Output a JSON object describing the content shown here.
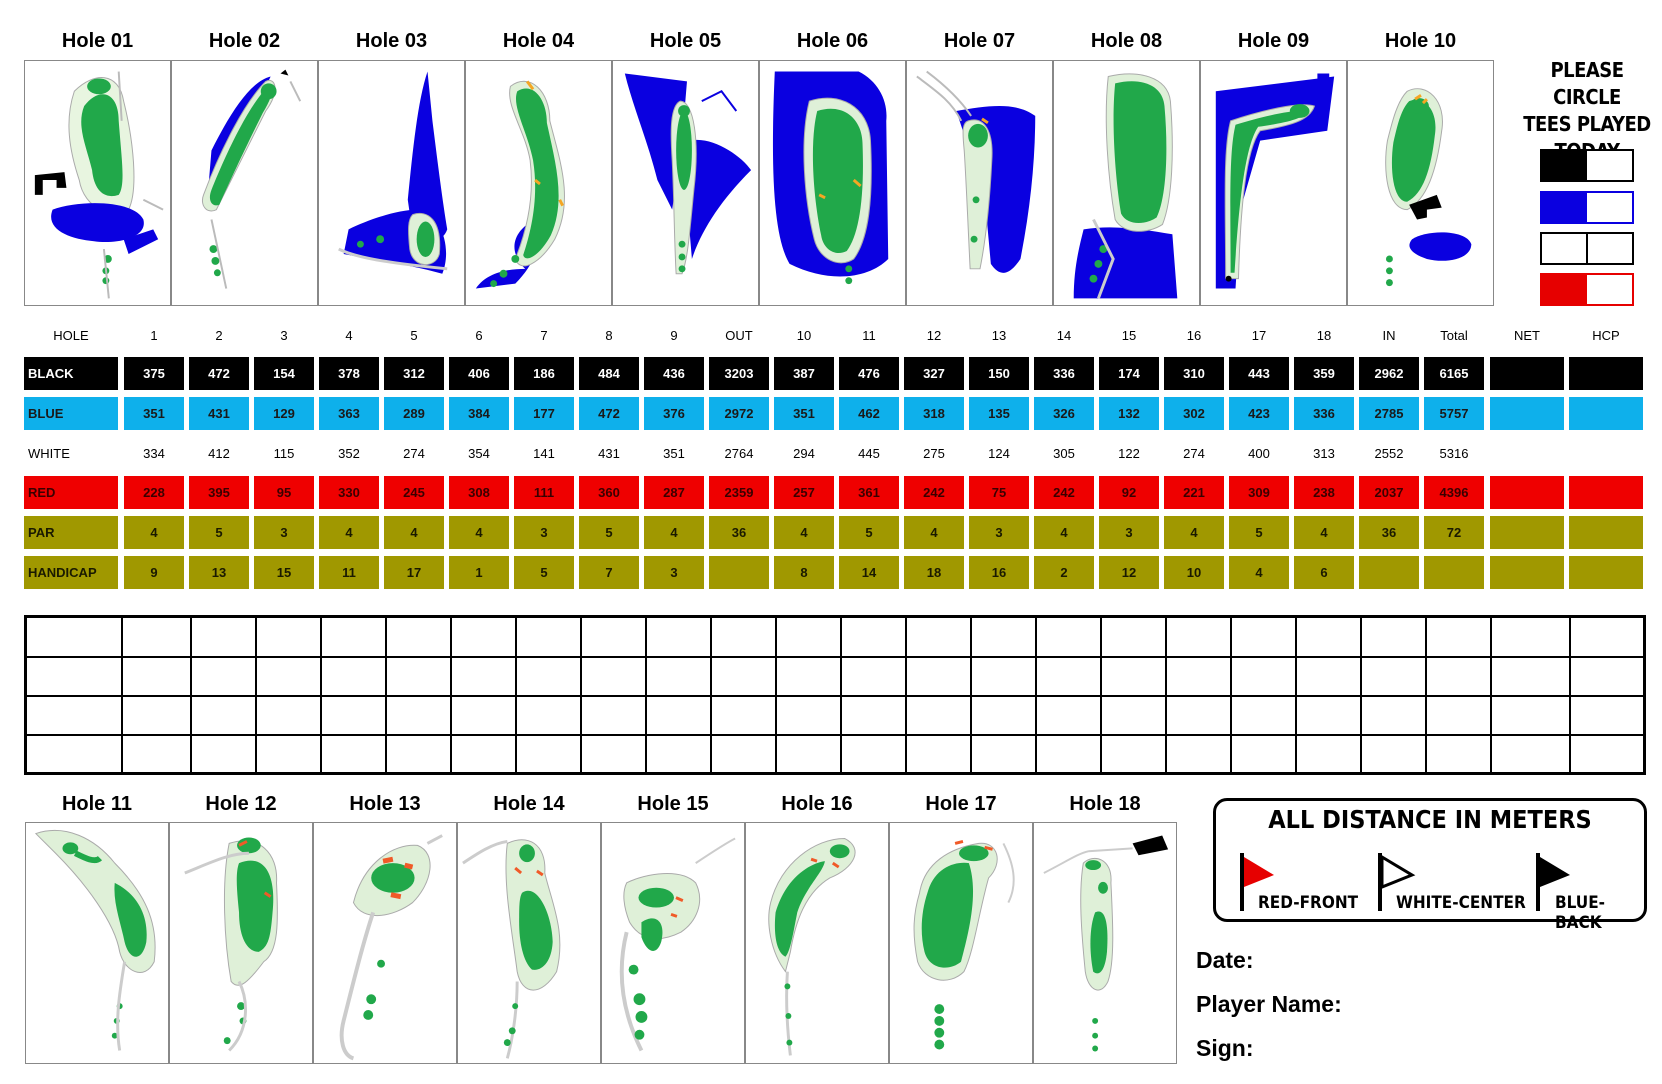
{
  "holes_top": [
    "Hole 01",
    "Hole 02",
    "Hole 03",
    "Hole 04",
    "Hole 05",
    "Hole 06",
    "Hole 07",
    "Hole 08",
    "Hole 09",
    "Hole 10"
  ],
  "holes_bottom": [
    "Hole 11",
    "Hole 12",
    "Hole 13",
    "Hole 14",
    "Hole 15",
    "Hole 16",
    "Hole 17",
    "Hole 18"
  ],
  "legend": {
    "line1": "PLEASE CIRCLE",
    "line2": "TEES PLAYED",
    "line3": "TODAY",
    "tee_colors": [
      "#000000",
      "#0a00e0",
      "#ffffff",
      "#e60000"
    ]
  },
  "scorecard": {
    "headers": [
      "HOLE",
      "1",
      "2",
      "3",
      "4",
      "5",
      "6",
      "7",
      "8",
      "9",
      "OUT",
      "10",
      "11",
      "12",
      "13",
      "14",
      "15",
      "16",
      "17",
      "18",
      "IN",
      "Total",
      "NET",
      "HCP"
    ],
    "rows": [
      {
        "label": "BLACK",
        "bg": "#000000",
        "fg": "#ffffff",
        "values": [
          "375",
          "472",
          "154",
          "378",
          "312",
          "406",
          "186",
          "484",
          "436",
          "3203",
          "387",
          "476",
          "327",
          "150",
          "336",
          "174",
          "310",
          "443",
          "359",
          "2962",
          "6165",
          "",
          ""
        ]
      },
      {
        "label": "BLUE",
        "bg": "#0eb0eb",
        "fg": "#1a1a1a",
        "values": [
          "351",
          "431",
          "129",
          "363",
          "289",
          "384",
          "177",
          "472",
          "376",
          "2972",
          "351",
          "462",
          "318",
          "135",
          "326",
          "132",
          "302",
          "423",
          "336",
          "2785",
          "5757",
          "",
          ""
        ]
      },
      {
        "label": "WHITE",
        "bg": "#ffffff",
        "fg": "#000000",
        "values": [
          "334",
          "412",
          "115",
          "352",
          "274",
          "354",
          "141",
          "431",
          "351",
          "2764",
          "294",
          "445",
          "275",
          "124",
          "305",
          "122",
          "274",
          "400",
          "313",
          "2552",
          "5316",
          "",
          ""
        ]
      },
      {
        "label": "RED",
        "bg": "#ef0000",
        "fg": "#3a0000",
        "values": [
          "228",
          "395",
          "95",
          "330",
          "245",
          "308",
          "111",
          "360",
          "287",
          "2359",
          "257",
          "361",
          "242",
          "75",
          "242",
          "92",
          "221",
          "309",
          "238",
          "2037",
          "4396",
          "",
          ""
        ]
      },
      {
        "label": "PAR",
        "bg": "#a09800",
        "fg": "#1a1a00",
        "values": [
          "4",
          "5",
          "3",
          "4",
          "4",
          "4",
          "3",
          "5",
          "4",
          "36",
          "4",
          "5",
          "4",
          "3",
          "4",
          "3",
          "4",
          "5",
          "4",
          "36",
          "72",
          "",
          ""
        ]
      },
      {
        "label": "HANDICAP",
        "bg": "#a09800",
        "fg": "#1a1a00",
        "values": [
          "9",
          "13",
          "15",
          "11",
          "17",
          "1",
          "5",
          "7",
          "3",
          "",
          "8",
          "14",
          "18",
          "16",
          "2",
          "12",
          "10",
          "4",
          "6",
          "",
          "",
          "",
          ""
        ]
      }
    ]
  },
  "info": {
    "title": "ALL DISTANCE IN METERS",
    "flags": [
      {
        "label": "RED-FRONT",
        "color": "#e60000"
      },
      {
        "label": "WHITE-CENTER",
        "color": "#ffffff"
      },
      {
        "label": "BLUE-BACK",
        "color": "#000000"
      }
    ]
  },
  "fields": {
    "date": "Date:",
    "player": "Player Name:",
    "sign": "Sign:"
  }
}
